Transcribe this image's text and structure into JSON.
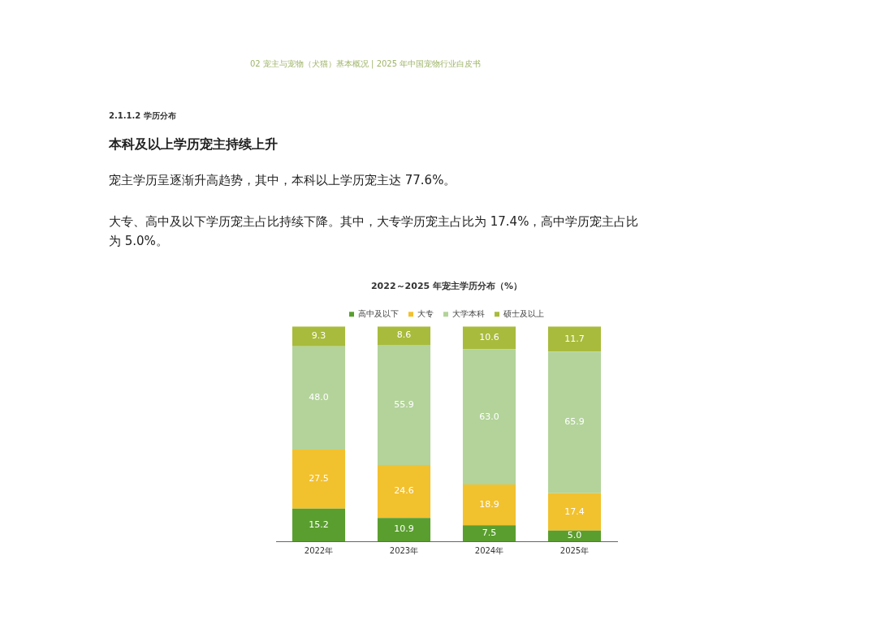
{
  "chart_data": {
    "type": "bar",
    "title": "2022～2025 年宠主学历分布（%）",
    "annotations": [
      "02 宠主与宠物（犬猫）基本概况 | 2025 年中国宠物行业白皮书",
      "2.1.1.2 学历分布",
      "本科及以上学历宠主持续上升",
      "宠主学历呈逐渐升高趋势，其中，本科以上学历宠主达 77.6%。",
      "大专、高中及以下学历宠主占比持续下降。其中，大专学历宠主占比为 17.4%，高中学历宠主占比为 5.0%。"
    ],
    "categories": [
      "2022年",
      "2023年",
      "2024年",
      "2025年"
    ],
    "series": [
      {
        "name": "高中及以下",
        "color": "#5a9e2f",
        "values": [
          15.2,
          10.9,
          7.5,
          5.0
        ],
        "value_labels": [
          "15.2",
          "10.9",
          "7.5",
          "5.0"
        ]
      },
      {
        "name": "大专",
        "color": "#f2c12e",
        "values": [
          27.5,
          24.6,
          18.9,
          17.4
        ],
        "value_labels": [
          "27.5",
          "24.6",
          "18.9",
          "17.4"
        ]
      },
      {
        "name": "大学本科",
        "color": "#b3d39a",
        "values": [
          48.0,
          55.9,
          63.0,
          65.9
        ],
        "value_labels": [
          "48.0",
          "55.9",
          "63.0",
          "65.9"
        ]
      },
      {
        "name": "硕士及以上",
        "color": "#a9bb3c",
        "values": [
          9.3,
          8.6,
          10.6,
          11.7
        ],
        "value_labels": [
          "9.3",
          "8.6",
          "10.6",
          "11.7"
        ]
      }
    ],
    "stacked": true,
    "ylim": [
      0,
      100
    ],
    "legend": "top",
    "grid": false,
    "tick_labels": "x"
  }
}
